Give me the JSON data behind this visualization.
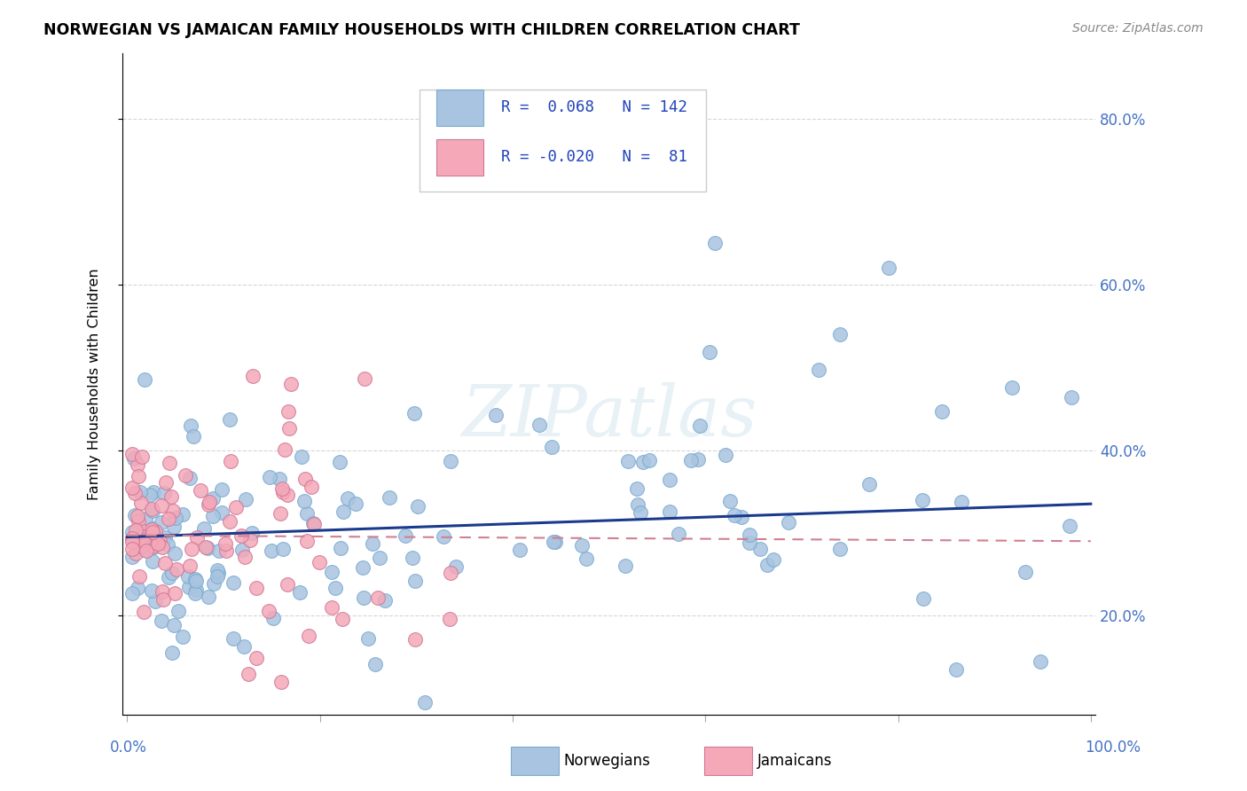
{
  "title": "NORWEGIAN VS JAMAICAN FAMILY HOUSEHOLDS WITH CHILDREN CORRELATION CHART",
  "source": "Source: ZipAtlas.com",
  "ylabel": "Family Households with Children",
  "watermark": "ZIPatlas",
  "nor_color": "#a8c4e0",
  "nor_edge_color": "#7aaad0",
  "jam_color": "#f4a8b8",
  "jam_edge_color": "#d07898",
  "nor_line_color": "#1a3a8c",
  "jam_line_color": "#d08090",
  "tick_color": "#4472c4",
  "ytick_values": [
    0.2,
    0.4,
    0.6,
    0.8
  ],
  "ytick_labels": [
    "20.0%",
    "40.0%",
    "60.0%",
    "80.0%"
  ],
  "xlim": [
    -0.005,
    1.005
  ],
  "ylim": [
    0.08,
    0.88
  ],
  "nor_R": 0.068,
  "nor_N": 142,
  "jam_R": -0.02,
  "jam_N": 81,
  "nor_line_x": [
    0.0,
    1.0
  ],
  "nor_line_y": [
    0.295,
    0.335
  ],
  "jam_line_x": [
    0.0,
    1.0
  ],
  "jam_line_y": [
    0.297,
    0.29
  ]
}
